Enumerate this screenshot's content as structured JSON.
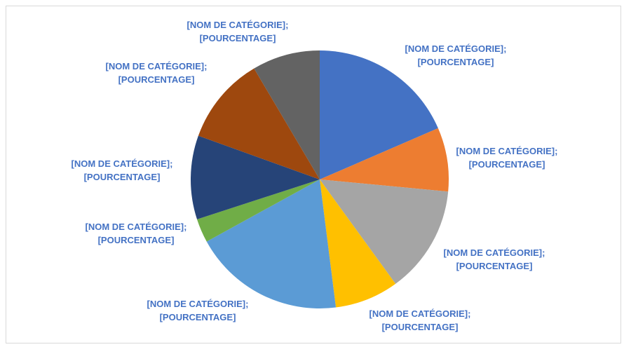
{
  "chart_data": {
    "type": "pie",
    "title": "",
    "label_color": "#4472C4",
    "legend": "none",
    "slices": [
      {
        "name": "[NOM DE CATÉGORIE]",
        "value": 18.5,
        "label_line1": "[NOM DE CATÉGORIE];",
        "label_line2": "[POURCENTAGE]",
        "color": "#4472C4"
      },
      {
        "name": "[NOM DE CATÉGORIE]",
        "value": 8.0,
        "label_line1": "[NOM DE CATÉGORIE];",
        "label_line2": "[POURCENTAGE]",
        "color": "#ED7D31"
      },
      {
        "name": "[NOM DE CATÉGORIE]",
        "value": 13.5,
        "label_line1": "[NOM DE CATÉGORIE];",
        "label_line2": "[POURCENTAGE]",
        "color": "#A5A5A5"
      },
      {
        "name": "[NOM DE CATÉGORIE]",
        "value": 8.0,
        "label_line1": "[NOM DE CATÉGORIE];",
        "label_line2": "[POURCENTAGE]",
        "color": "#FFC000"
      },
      {
        "name": "[NOM DE CATÉGORIE]",
        "value": 19.0,
        "label_line1": "[NOM DE CATÉGORIE];",
        "label_line2": "[POURCENTAGE]",
        "color": "#5B9BD5"
      },
      {
        "name": "[NOM DE CATÉGORIE]",
        "value": 3.0,
        "label_line1": "[NOM DE CATÉGORIE];",
        "label_line2": "[POURCENTAGE]",
        "color": "#70AD47"
      },
      {
        "name": "[NOM DE CATÉGORIE]",
        "value": 10.5,
        "label_line1": "[NOM DE CATÉGORIE];",
        "label_line2": "[POURCENTAGE]",
        "color": "#264478"
      },
      {
        "name": "[NOM DE CATÉGORIE]",
        "value": 11.0,
        "label_line1": "[NOM DE CATÉGORIE];",
        "label_line2": "[POURCENTAGE]",
        "color": "#9E480E"
      },
      {
        "name": "[NOM DE CATÉGORIE]",
        "value": 8.5,
        "label_line1": "[NOM DE CATÉGORIE];",
        "label_line2": "[POURCENTAGE]",
        "color": "#636363"
      }
    ]
  }
}
